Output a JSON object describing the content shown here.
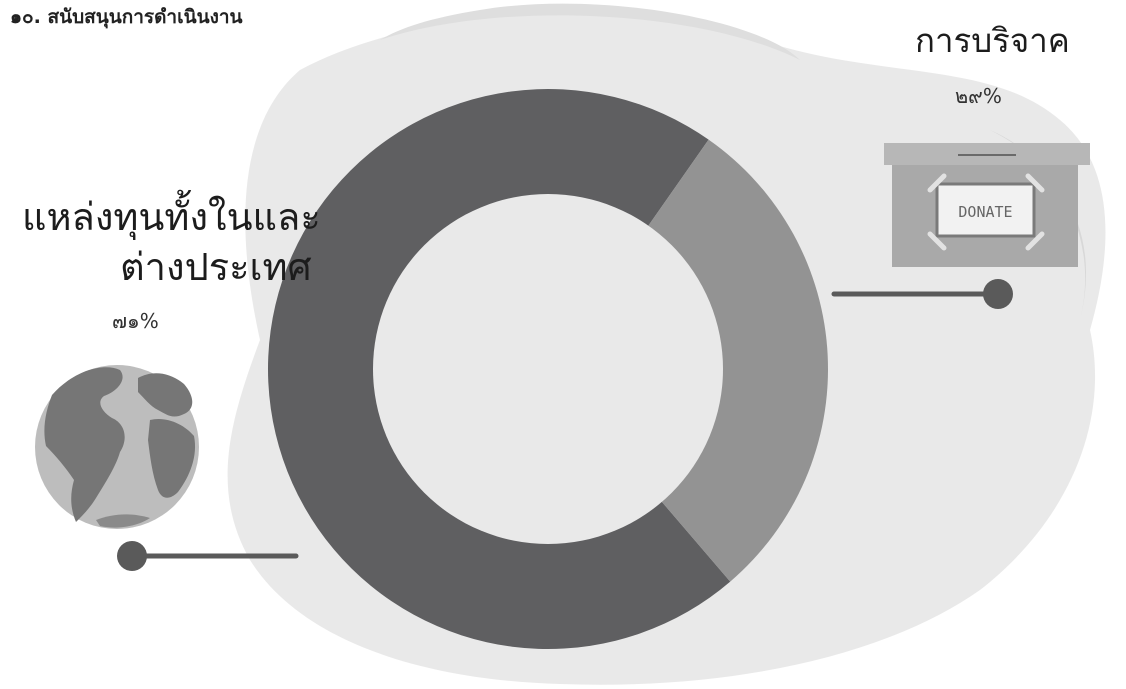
{
  "page": {
    "title": "๑๐. สนับสนุนการดำเนินงาน"
  },
  "colors": {
    "slice_large": "#5f5f61",
    "slice_small": "#939393",
    "inner_circle": "#e9e9e9",
    "connector": "#595959",
    "watercolor": "#e4e4e4"
  },
  "chart_data": {
    "type": "pie",
    "title": "",
    "labels": [
      "แหล่งทุนทั้งในและต่างประเทศ",
      "การบริจาค"
    ],
    "values": [
      71,
      29
    ],
    "value_labels": [
      "๗๑%",
      "๒๙%"
    ],
    "colors": [
      "#5f5f61",
      "#939393"
    ]
  },
  "annotations": {
    "right": {
      "label": "การบริจาค",
      "value": "๒๙%",
      "icon": "donation-box-icon",
      "icon_text": "DONATE"
    },
    "left": {
      "label_line1": "แหล่งทุนทั้งในและ",
      "label_line2": "ต่างประเทศ",
      "value": "๗๑%",
      "icon": "globe-icon"
    }
  }
}
